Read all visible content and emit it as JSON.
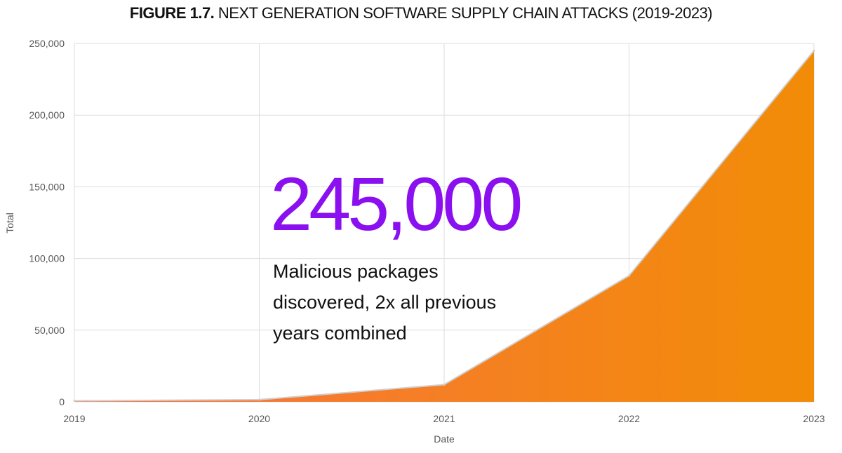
{
  "title": {
    "prefix": "FIGURE 1.7.",
    "rest": "NEXT GENERATION SOFTWARE SUPPLY CHAIN ATTACKS (2019-2023)"
  },
  "callout": {
    "number": "245,000",
    "text": "Malicious packages discovered, 2x all previous years combined"
  },
  "colors": {
    "area_start": "#f87241",
    "area_end": "#f28c07",
    "area_line": "#cfcfcf",
    "callout_number": "#8a10f0",
    "grid": "#dddddd"
  },
  "chart_data": {
    "type": "area",
    "title": "FIGURE 1.7. NEXT GENERATION SOFTWARE SUPPLY CHAIN ATTACKS (2019-2023)",
    "xlabel": "Date",
    "ylabel": "Total",
    "x": [
      "2019",
      "2020",
      "2021",
      "2022",
      "2023"
    ],
    "values": [
      700,
      1500,
      12000,
      88000,
      245000
    ],
    "ylim": [
      0,
      250000
    ],
    "yticks": [
      0,
      50000,
      100000,
      150000,
      200000,
      250000
    ],
    "ytick_labels": [
      "0",
      "50,000",
      "100,000",
      "150,000",
      "200,000",
      "250,000"
    ],
    "grid": true,
    "legend": "none"
  }
}
